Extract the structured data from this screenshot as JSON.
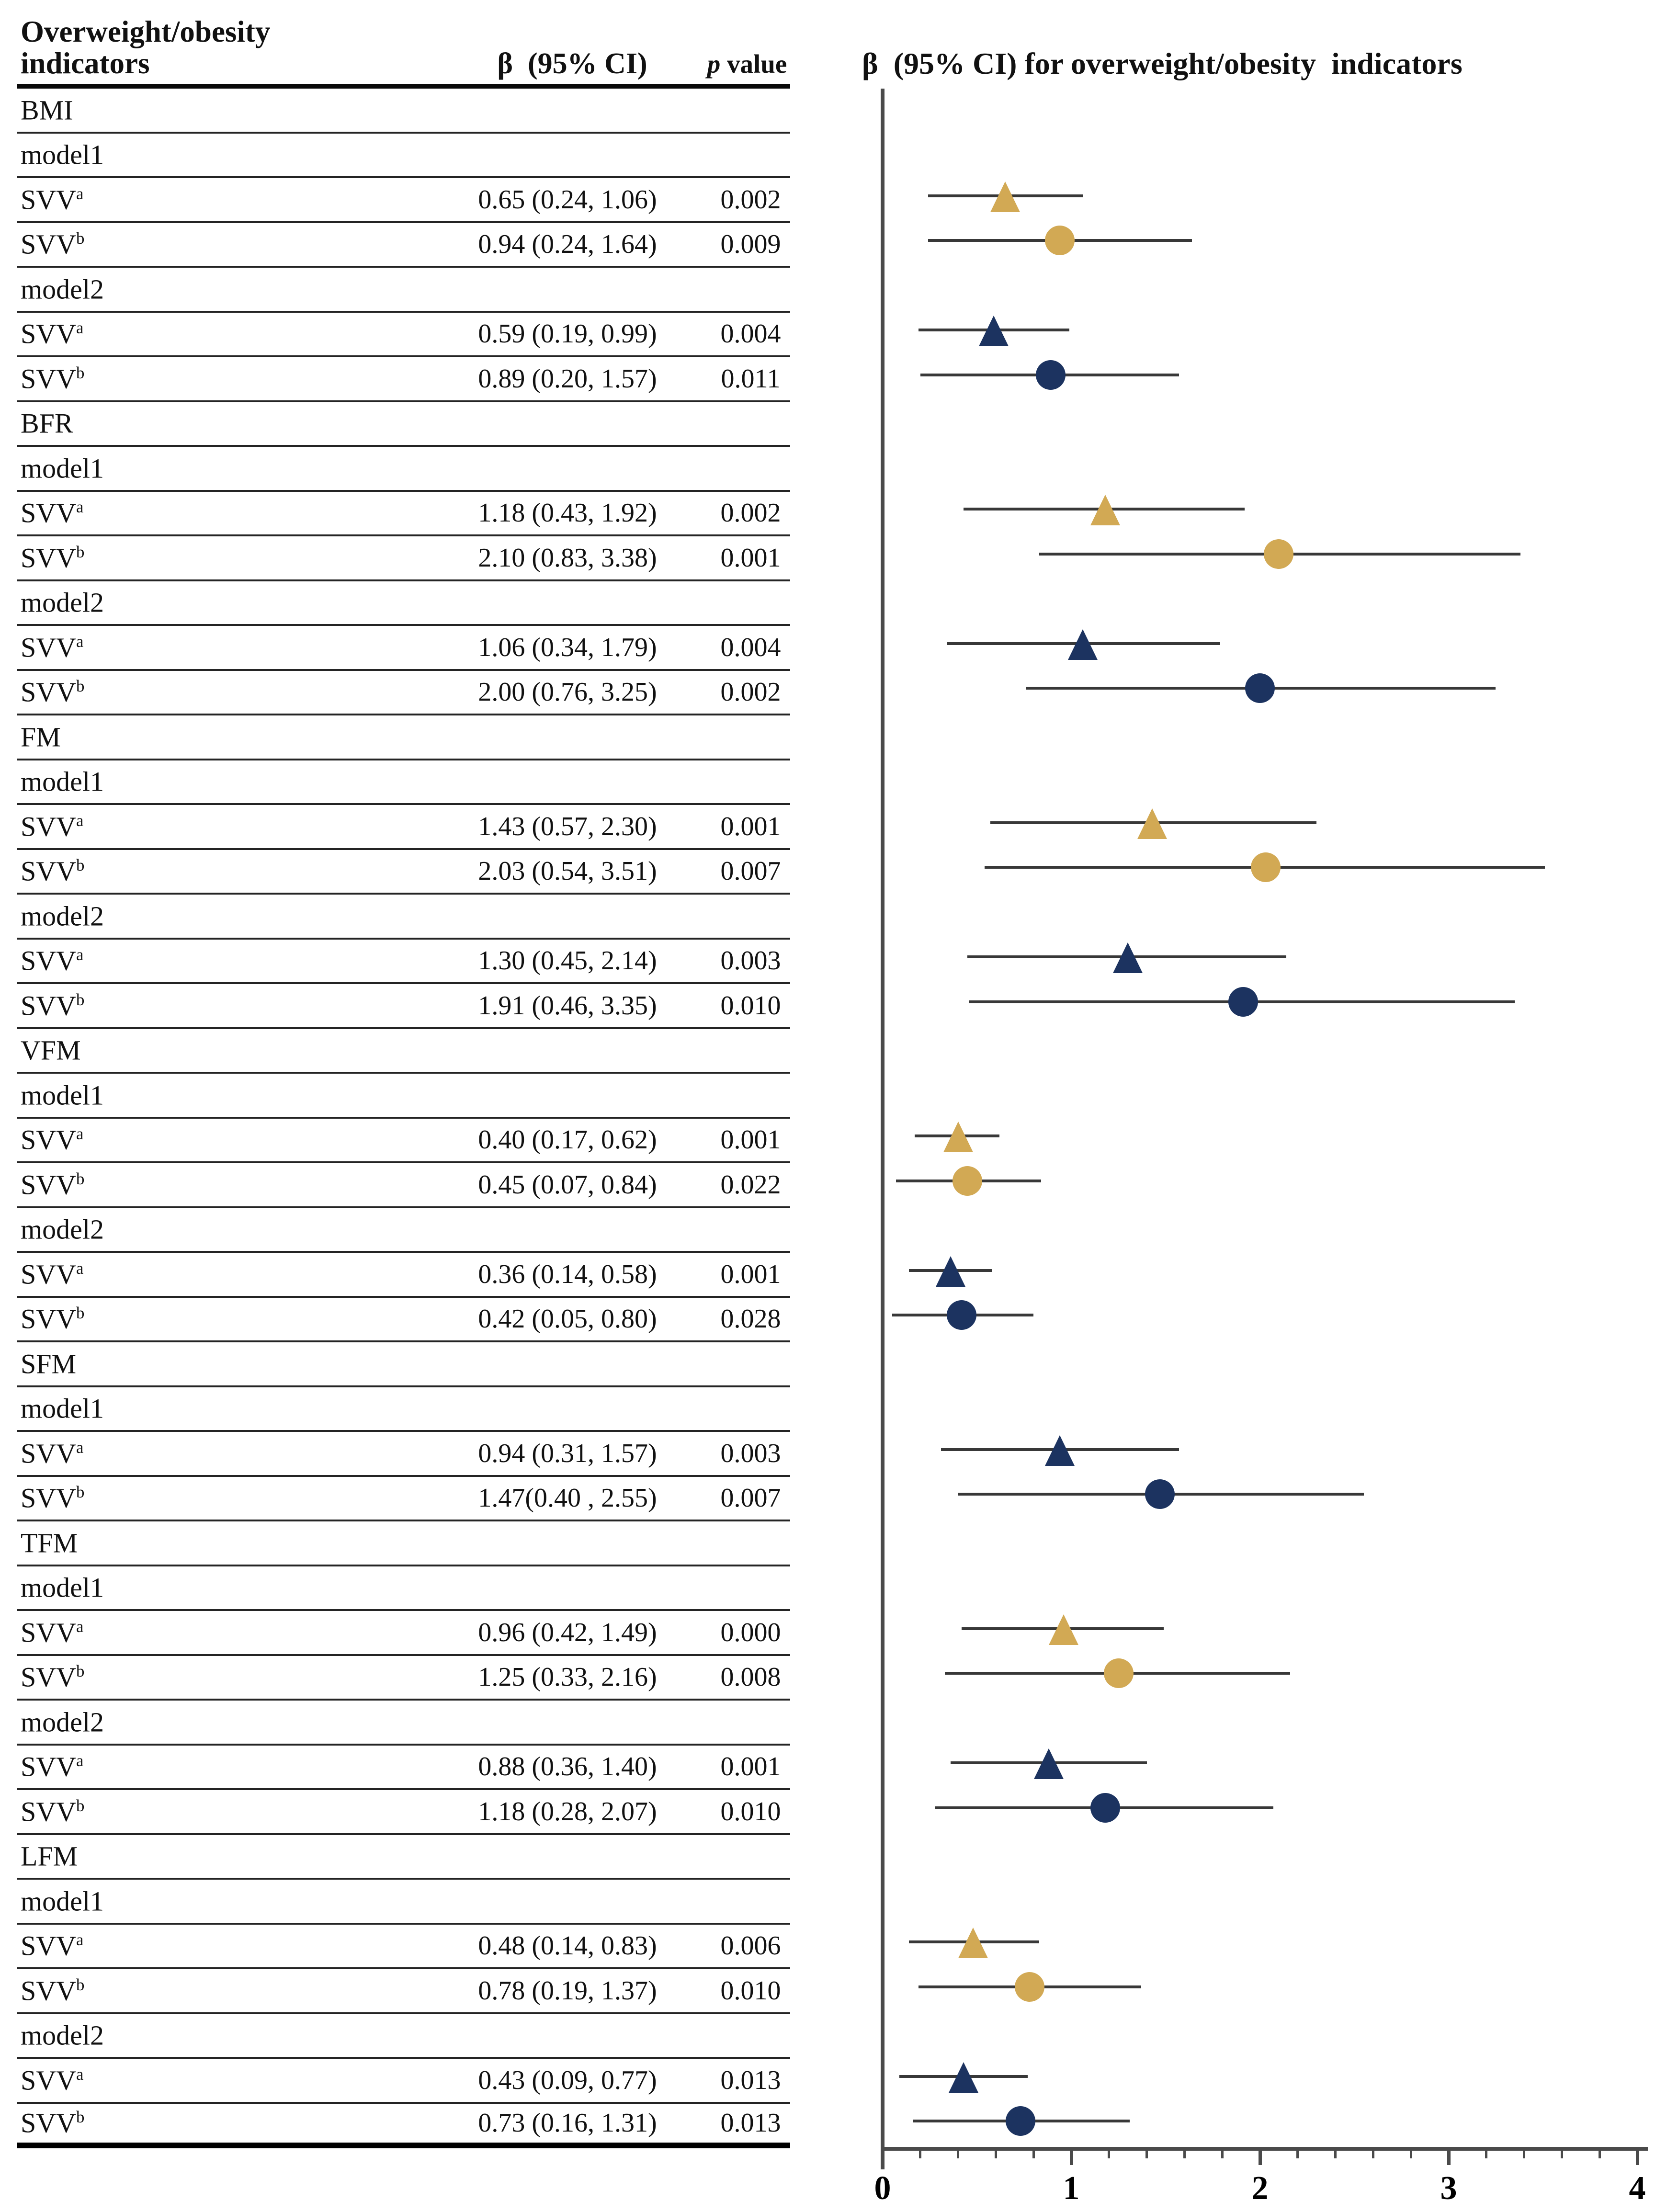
{
  "table": {
    "header": {
      "col1_line1": "Overweight/obesity",
      "col1_line2": "indicators",
      "beta_label": "β  (95% CI)",
      "p_label_italic": "p",
      "p_label_rest": " value"
    },
    "rows": [
      {
        "type": "section",
        "label": "BMI"
      },
      {
        "type": "model",
        "label": "model1"
      },
      {
        "type": "data",
        "label": "SVV",
        "sup": "a",
        "beta": "0.65 (0.24, 1.06)",
        "p": "0.002"
      },
      {
        "type": "data",
        "label": "SVV",
        "sup": "b",
        "beta": "0.94 (0.24, 1.64)",
        "p": "0.009"
      },
      {
        "type": "model",
        "label": "model2"
      },
      {
        "type": "data",
        "label": "SVV",
        "sup": "a",
        "beta": "0.59 (0.19, 0.99)",
        "p": "0.004"
      },
      {
        "type": "data",
        "label": "SVV",
        "sup": "b",
        "beta": "0.89 (0.20, 1.57)",
        "p": "0.011"
      },
      {
        "type": "section",
        "label": "BFR"
      },
      {
        "type": "model",
        "label": "model1"
      },
      {
        "type": "data",
        "label": "SVV",
        "sup": "a",
        "beta": "1.18 (0.43, 1.92)",
        "p": "0.002"
      },
      {
        "type": "data",
        "label": "SVV",
        "sup": "b",
        "beta": "2.10 (0.83, 3.38)",
        "p": "0.001"
      },
      {
        "type": "model",
        "label": "model2"
      },
      {
        "type": "data",
        "label": "SVV",
        "sup": "a",
        "beta": "1.06 (0.34, 1.79)",
        "p": "0.004"
      },
      {
        "type": "data",
        "label": "SVV",
        "sup": "b",
        "beta": "2.00 (0.76, 3.25)",
        "p": "0.002"
      },
      {
        "type": "section",
        "label": "FM"
      },
      {
        "type": "model",
        "label": "model1"
      },
      {
        "type": "data",
        "label": "SVV",
        "sup": "a",
        "beta": "1.43 (0.57, 2.30)",
        "p": "0.001"
      },
      {
        "type": "data",
        "label": "SVV",
        "sup": "b",
        "beta": "2.03 (0.54, 3.51)",
        "p": "0.007"
      },
      {
        "type": "model",
        "label": "model2"
      },
      {
        "type": "data",
        "label": "SVV",
        "sup": "a",
        "beta": "1.30 (0.45, 2.14)",
        "p": "0.003"
      },
      {
        "type": "data",
        "label": "SVV",
        "sup": "b",
        "beta": "1.91 (0.46, 3.35)",
        "p": "0.010"
      },
      {
        "type": "section",
        "label": "VFM"
      },
      {
        "type": "model",
        "label": "model1"
      },
      {
        "type": "data",
        "label": "SVV",
        "sup": "a",
        "beta": "0.40 (0.17, 0.62)",
        "p": "0.001"
      },
      {
        "type": "data",
        "label": "SVV",
        "sup": "b",
        "beta": "0.45 (0.07, 0.84)",
        "p": "0.022"
      },
      {
        "type": "model",
        "label": "model2"
      },
      {
        "type": "data",
        "label": "SVV",
        "sup": "a",
        "beta": "0.36 (0.14, 0.58)",
        "p": "0.001"
      },
      {
        "type": "data",
        "label": "SVV",
        "sup": "b",
        "beta": "0.42 (0.05, 0.80)",
        "p": "0.028"
      },
      {
        "type": "section",
        "label": "SFM"
      },
      {
        "type": "model",
        "label": "model1"
      },
      {
        "type": "data",
        "label": "SVV",
        "sup": "a",
        "beta": "0.94 (0.31, 1.57)",
        "p": "0.003"
      },
      {
        "type": "data",
        "label": "SVV",
        "sup": "b",
        "beta": "1.47(0.40 , 2.55)",
        "p": "0.007"
      },
      {
        "type": "section",
        "label": "TFM"
      },
      {
        "type": "model",
        "label": "model1"
      },
      {
        "type": "data",
        "label": "SVV",
        "sup": "a",
        "beta": "0.96 (0.42, 1.49)",
        "p": "0.000"
      },
      {
        "type": "data",
        "label": "SVV",
        "sup": "b",
        "beta": "1.25 (0.33, 2.16)",
        "p": "0.008"
      },
      {
        "type": "model",
        "label": "model2"
      },
      {
        "type": "data",
        "label": "SVV",
        "sup": "a",
        "beta": "0.88 (0.36, 1.40)",
        "p": "0.001"
      },
      {
        "type": "data",
        "label": "SVV",
        "sup": "b",
        "beta": "1.18 (0.28, 2.07)",
        "p": "0.010"
      },
      {
        "type": "section",
        "label": "LFM"
      },
      {
        "type": "model",
        "label": "model1"
      },
      {
        "type": "data",
        "label": "SVV",
        "sup": "a",
        "beta": "0.48 (0.14, 0.83)",
        "p": "0.006"
      },
      {
        "type": "data",
        "label": "SVV",
        "sup": "b",
        "beta": "0.78 (0.19, 1.37)",
        "p": "0.010"
      },
      {
        "type": "model",
        "label": "model2"
      },
      {
        "type": "data",
        "label": "SVV",
        "sup": "a",
        "beta": "0.43 (0.09, 0.77)",
        "p": "0.013"
      },
      {
        "type": "data",
        "label": "SVV",
        "sup": "b",
        "beta": "0.73 (0.16, 1.31)",
        "p": "0.013"
      }
    ]
  },
  "plot": {
    "title": "β  (95% CI) for overweight/obesity  indicators",
    "x_axis": {
      "min": 0,
      "max": 4,
      "major_ticks": [
        "0",
        "1",
        "2",
        "3",
        "4"
      ],
      "minor_step": 0.2
    },
    "colors": {
      "model1_gold": "#D2A954",
      "model2_navy": "#1C3360",
      "ci_line": "#383838",
      "axis": "#4a4a4a"
    }
  },
  "chart_data": {
    "type": "scatter",
    "subtype": "forest-plot",
    "title": "β (95% CI) for overweight/obesity indicators",
    "xlabel": "β (95% CI)",
    "xlim": [
      0,
      4
    ],
    "x_ticks": [
      0,
      1,
      2,
      3,
      4
    ],
    "minor_tick_step": 0.2,
    "grid": false,
    "marker_legend": {
      "triangle": "SVVa",
      "circle": "SVVb",
      "gold": "model1",
      "navy": "model2"
    },
    "points": [
      {
        "group": "BMI",
        "model": "model1",
        "estimator": "SVVa",
        "marker": "triangle",
        "color": "gold",
        "beta": 0.65,
        "lo": 0.24,
        "hi": 1.06,
        "p": 0.002
      },
      {
        "group": "BMI",
        "model": "model1",
        "estimator": "SVVb",
        "marker": "circle",
        "color": "gold",
        "beta": 0.94,
        "lo": 0.24,
        "hi": 1.64,
        "p": 0.009
      },
      {
        "group": "BMI",
        "model": "model2",
        "estimator": "SVVa",
        "marker": "triangle",
        "color": "navy",
        "beta": 0.59,
        "lo": 0.19,
        "hi": 0.99,
        "p": 0.004
      },
      {
        "group": "BMI",
        "model": "model2",
        "estimator": "SVVb",
        "marker": "circle",
        "color": "navy",
        "beta": 0.89,
        "lo": 0.2,
        "hi": 1.57,
        "p": 0.011
      },
      {
        "group": "BFR",
        "model": "model1",
        "estimator": "SVVa",
        "marker": "triangle",
        "color": "gold",
        "beta": 1.18,
        "lo": 0.43,
        "hi": 1.92,
        "p": 0.002
      },
      {
        "group": "BFR",
        "model": "model1",
        "estimator": "SVVb",
        "marker": "circle",
        "color": "gold",
        "beta": 2.1,
        "lo": 0.83,
        "hi": 3.38,
        "p": 0.001
      },
      {
        "group": "BFR",
        "model": "model2",
        "estimator": "SVVa",
        "marker": "triangle",
        "color": "navy",
        "beta": 1.06,
        "lo": 0.34,
        "hi": 1.79,
        "p": 0.004
      },
      {
        "group": "BFR",
        "model": "model2",
        "estimator": "SVVb",
        "marker": "circle",
        "color": "navy",
        "beta": 2.0,
        "lo": 0.76,
        "hi": 3.25,
        "p": 0.002
      },
      {
        "group": "FM",
        "model": "model1",
        "estimator": "SVVa",
        "marker": "triangle",
        "color": "gold",
        "beta": 1.43,
        "lo": 0.57,
        "hi": 2.3,
        "p": 0.001
      },
      {
        "group": "FM",
        "model": "model1",
        "estimator": "SVVb",
        "marker": "circle",
        "color": "gold",
        "beta": 2.03,
        "lo": 0.54,
        "hi": 3.51,
        "p": 0.007
      },
      {
        "group": "FM",
        "model": "model2",
        "estimator": "SVVa",
        "marker": "triangle",
        "color": "navy",
        "beta": 1.3,
        "lo": 0.45,
        "hi": 2.14,
        "p": 0.003
      },
      {
        "group": "FM",
        "model": "model2",
        "estimator": "SVVb",
        "marker": "circle",
        "color": "navy",
        "beta": 1.91,
        "lo": 0.46,
        "hi": 3.35,
        "p": 0.01
      },
      {
        "group": "VFM",
        "model": "model1",
        "estimator": "SVVa",
        "marker": "triangle",
        "color": "gold",
        "beta": 0.4,
        "lo": 0.17,
        "hi": 0.62,
        "p": 0.001
      },
      {
        "group": "VFM",
        "model": "model1",
        "estimator": "SVVb",
        "marker": "circle",
        "color": "gold",
        "beta": 0.45,
        "lo": 0.07,
        "hi": 0.84,
        "p": 0.022
      },
      {
        "group": "VFM",
        "model": "model2",
        "estimator": "SVVa",
        "marker": "triangle",
        "color": "navy",
        "beta": 0.36,
        "lo": 0.14,
        "hi": 0.58,
        "p": 0.001
      },
      {
        "group": "VFM",
        "model": "model2",
        "estimator": "SVVb",
        "marker": "circle",
        "color": "navy",
        "beta": 0.42,
        "lo": 0.05,
        "hi": 0.8,
        "p": 0.028
      },
      {
        "group": "SFM",
        "model": "model1",
        "estimator": "SVVa",
        "marker": "triangle",
        "color": "navy",
        "beta": 0.94,
        "lo": 0.31,
        "hi": 1.57,
        "p": 0.003
      },
      {
        "group": "SFM",
        "model": "model1",
        "estimator": "SVVb",
        "marker": "circle",
        "color": "navy",
        "beta": 1.47,
        "lo": 0.4,
        "hi": 2.55,
        "p": 0.007
      },
      {
        "group": "TFM",
        "model": "model1",
        "estimator": "SVVa",
        "marker": "triangle",
        "color": "gold",
        "beta": 0.96,
        "lo": 0.42,
        "hi": 1.49,
        "p": 0.0
      },
      {
        "group": "TFM",
        "model": "model1",
        "estimator": "SVVb",
        "marker": "circle",
        "color": "gold",
        "beta": 1.25,
        "lo": 0.33,
        "hi": 2.16,
        "p": 0.008
      },
      {
        "group": "TFM",
        "model": "model2",
        "estimator": "SVVa",
        "marker": "triangle",
        "color": "navy",
        "beta": 0.88,
        "lo": 0.36,
        "hi": 1.4,
        "p": 0.001
      },
      {
        "group": "TFM",
        "model": "model2",
        "estimator": "SVVb",
        "marker": "circle",
        "color": "navy",
        "beta": 1.18,
        "lo": 0.28,
        "hi": 2.07,
        "p": 0.01
      },
      {
        "group": "LFM",
        "model": "model1",
        "estimator": "SVVa",
        "marker": "triangle",
        "color": "gold",
        "beta": 0.48,
        "lo": 0.14,
        "hi": 0.83,
        "p": 0.006
      },
      {
        "group": "LFM",
        "model": "model1",
        "estimator": "SVVb",
        "marker": "circle",
        "color": "gold",
        "beta": 0.78,
        "lo": 0.19,
        "hi": 1.37,
        "p": 0.01
      },
      {
        "group": "LFM",
        "model": "model2",
        "estimator": "SVVa",
        "marker": "triangle",
        "color": "navy",
        "beta": 0.43,
        "lo": 0.09,
        "hi": 0.77,
        "p": 0.013
      },
      {
        "group": "LFM",
        "model": "model2",
        "estimator": "SVVb",
        "marker": "circle",
        "color": "navy",
        "beta": 0.73,
        "lo": 0.16,
        "hi": 1.31,
        "p": 0.013
      }
    ]
  }
}
